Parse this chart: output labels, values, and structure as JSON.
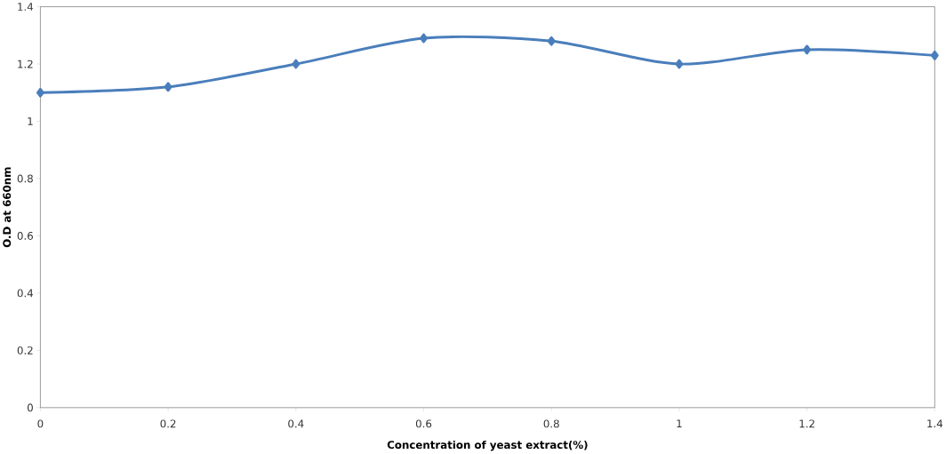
{
  "chart_data": {
    "type": "line",
    "xlabel": "Concentration of yeast extract(%)",
    "ylabel": "O.D at 660nm",
    "x": [
      0,
      0.2,
      0.4,
      0.6,
      0.8,
      1,
      1.2,
      1.4
    ],
    "series": [
      {
        "color": "#4a7ebb",
        "values": [
          1.1,
          1.12,
          1.2,
          1.29,
          1.28,
          1.2,
          1.25,
          1.23
        ]
      }
    ],
    "xlim": [
      0,
      1.4
    ],
    "xticks": [
      0,
      0.2,
      0.4,
      0.6,
      0.8,
      1,
      1.2,
      1.4
    ],
    "ylim": [
      0,
      1.4
    ],
    "yticks": [
      0,
      0.2,
      0.4,
      0.6,
      0.8,
      1,
      1.2,
      1.4
    ],
    "grid": false,
    "marker": "diamond",
    "line_style": "solid"
  }
}
